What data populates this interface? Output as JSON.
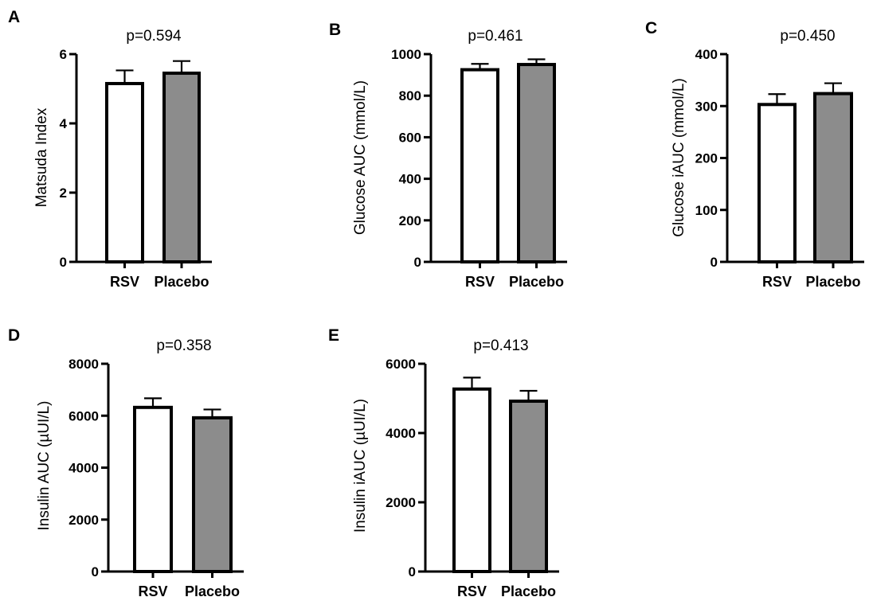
{
  "chart_data": [
    {
      "type": "bar",
      "panel_label": "A",
      "title": "p=0.594",
      "xlabel": "",
      "ylabel": "Matsuda Index",
      "categories": [
        "RSV",
        "Placebo"
      ],
      "values": [
        5.15,
        5.45
      ],
      "error_upper": [
        0.38,
        0.35
      ],
      "bar_colors": [
        "#ffffff",
        "#8c8c8c"
      ],
      "ylim": [
        0,
        6
      ],
      "yticks": [
        0,
        2,
        4,
        6
      ],
      "grid": false,
      "legend": "none"
    },
    {
      "type": "bar",
      "panel_label": "B",
      "title": "p=0.461",
      "xlabel": "",
      "ylabel": "Glucose AUC (mmol/L)",
      "categories": [
        "RSV",
        "Placebo"
      ],
      "values": [
        925,
        950
      ],
      "error_upper": [
        28,
        25
      ],
      "bar_colors": [
        "#ffffff",
        "#8c8c8c"
      ],
      "ylim": [
        0,
        1000
      ],
      "yticks": [
        0,
        200,
        400,
        600,
        800,
        1000
      ],
      "grid": false,
      "legend": "none"
    },
    {
      "type": "bar",
      "panel_label": "C",
      "title": "p=0.450",
      "xlabel": "",
      "ylabel": "Glucose iAUC (mmol/L)",
      "categories": [
        "RSV",
        "Placebo"
      ],
      "values": [
        303,
        324
      ],
      "error_upper": [
        20,
        20
      ],
      "bar_colors": [
        "#ffffff",
        "#8c8c8c"
      ],
      "ylim": [
        0,
        400
      ],
      "yticks": [
        0,
        100,
        200,
        300,
        400
      ],
      "grid": false,
      "legend": "none"
    },
    {
      "type": "bar",
      "panel_label": "D",
      "title": "p=0.358",
      "xlabel": "",
      "ylabel": "Insulin AUC (µUI/L)",
      "categories": [
        "RSV",
        "Placebo"
      ],
      "values": [
        6320,
        5920
      ],
      "error_upper": [
        350,
        320
      ],
      "bar_colors": [
        "#ffffff",
        "#8c8c8c"
      ],
      "ylim": [
        0,
        8000
      ],
      "yticks": [
        0,
        2000,
        4000,
        6000,
        8000
      ],
      "grid": false,
      "legend": "none"
    },
    {
      "type": "bar",
      "panel_label": "E",
      "title": "p=0.413",
      "xlabel": "",
      "ylabel": "Insulin iAUC (µUI/L)",
      "categories": [
        "RSV",
        "Placebo"
      ],
      "values": [
        5270,
        4920
      ],
      "error_upper": [
        330,
        300
      ],
      "bar_colors": [
        "#ffffff",
        "#8c8c8c"
      ],
      "ylim": [
        0,
        6000
      ],
      "yticks": [
        0,
        2000,
        4000,
        6000
      ],
      "grid": false,
      "legend": "none"
    }
  ]
}
